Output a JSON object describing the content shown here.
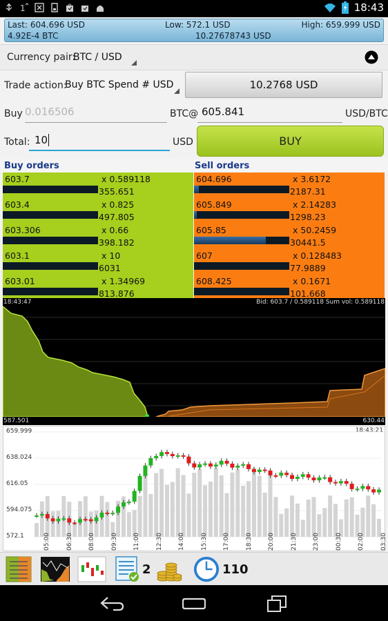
{
  "status_bar": {
    "time": "18:43",
    "icons": [
      "usb-icon",
      "signal-one-icon",
      "no-sim-icon",
      "sd-card-icon",
      "bag-icon",
      "shop-icon",
      "android-icon"
    ]
  },
  "ticker": {
    "last": "Last: 604.696 USD",
    "low": "Low: 572.1 USD",
    "high": "High: 659.999 USD",
    "change": "4.92E-4 BTC",
    "volume": "10.27678743 USD"
  },
  "currency_pair": {
    "label": "Currency pair:",
    "value": "BTC / USD"
  },
  "trade_action": {
    "label": "Trade action:",
    "value": "Buy BTC Spend # USD",
    "button": "10.2768 USD"
  },
  "buy_row": {
    "label": "Buy",
    "amount_placeholder": "0.016506",
    "unit_at": "BTC@",
    "price": "605.841",
    "price_unit": "USD/BTC"
  },
  "total_row": {
    "label": "Total:",
    "value": "10",
    "unit": "USD",
    "button": "BUY"
  },
  "order_book": {
    "buy_title": "Buy orders",
    "sell_title": "Sell orders",
    "buy": [
      {
        "price": "603.7",
        "amount": "x 0.589118",
        "total": "355.651",
        "fill": 0.0
      },
      {
        "price": "603.4",
        "amount": "x 0.825",
        "total": "497.805",
        "fill": 0.0
      },
      {
        "price": "603.306",
        "amount": "x 0.66",
        "total": "398.182",
        "fill": 0.0
      },
      {
        "price": "603.1",
        "amount": "x 10",
        "total": "6031",
        "fill": 0.0
      },
      {
        "price": "603.01",
        "amount": "x 1.34969",
        "total": "813.876",
        "fill": 0.0
      }
    ],
    "sell": [
      {
        "price": "604.696",
        "amount": "x 3.6172",
        "total": "2187.31",
        "fill": 0.05
      },
      {
        "price": "605.849",
        "amount": "x 2.14283",
        "total": "1298.23",
        "fill": 0.03
      },
      {
        "price": "605.85",
        "amount": "x 50.2459",
        "total": "30441.5",
        "fill": 0.75
      },
      {
        "price": "607",
        "amount": "x 0.128483",
        "total": "77.9889",
        "fill": 0.0
      },
      {
        "price": "608.425",
        "amount": "x 0.1671",
        "total": "101.668",
        "fill": 0.0
      }
    ]
  },
  "depth_chart": {
    "time": "18:43:47",
    "info": "Bid: 603.7 / 0.589118 Sum vol: 0.589118",
    "min_price": "587.501",
    "max_price": "630.44",
    "colors": {
      "bid": "#9cc21e",
      "ask": "#f07a14"
    }
  },
  "candle_chart": {
    "time": "18:43:21",
    "y_labels": [
      "659.999",
      "638.024",
      "616.05",
      "594.075",
      "572.1"
    ],
    "x_labels": [
      "05:00",
      "06:30",
      "08:00",
      "09:30",
      "11:00",
      "12:30",
      "14:00",
      "15:30",
      "17:00",
      "18:30",
      "20:00",
      "21:30",
      "23:00",
      "00:30",
      "02:00",
      "03:30"
    ],
    "colors": {
      "up": "#22b422",
      "down": "#e01c1c",
      "volume": "#d4d4d4"
    }
  },
  "toolbar": {
    "orders_count": "2",
    "timer_value": "110"
  },
  "chart_data": {
    "type": "bar",
    "title": "",
    "xlabel": "",
    "ylabel": "",
    "ylim": [
      572.1,
      659.999
    ],
    "categories": [
      "05:00",
      "06:30",
      "08:00",
      "09:30",
      "11:00",
      "12:30",
      "14:00",
      "15:30",
      "17:00",
      "18:30",
      "20:00",
      "21:30",
      "23:00",
      "00:30",
      "02:00",
      "03:30"
    ],
    "series": [
      {
        "values": [
          590,
          586,
          585,
          591,
          601,
          640,
          642,
          631,
          634,
          631,
          626,
          623,
          622,
          619,
          613,
          611
        ]
      }
    ]
  }
}
